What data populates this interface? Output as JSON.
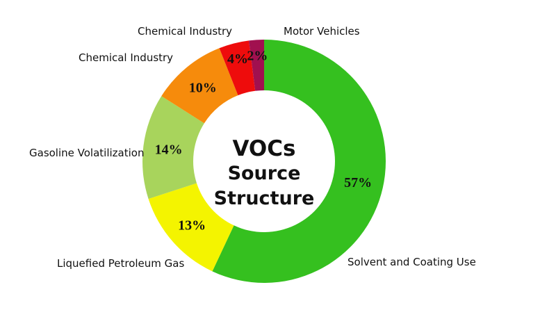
{
  "chart_data": {
    "type": "pie",
    "variant": "donut",
    "title_lines": [
      "VOCs",
      "Source",
      "Structure"
    ],
    "slices": [
      {
        "label": "Solvent and Coating Use",
        "value": 57,
        "value_label": "57%",
        "color": "#35c01f"
      },
      {
        "label": "Liquefied Petroleum Gas",
        "value": 13,
        "value_label": "13%",
        "color": "#f4f400"
      },
      {
        "label": "Gasoline Volatilization",
        "value": 14,
        "value_label": "14%",
        "color": "#a8d45c"
      },
      {
        "label": "Chemical Industry",
        "value": 10,
        "value_label": "10%",
        "color": "#f68b0c"
      },
      {
        "label": "Chemical Industry",
        "value": 4,
        "value_label": "4%",
        "color": "#ee0c0c"
      },
      {
        "label": "Motor Vehicles",
        "value": 2,
        "value_label": "2%",
        "color": "#a1104f"
      }
    ],
    "start": "top",
    "direction": "clockwise",
    "legend": "none"
  }
}
